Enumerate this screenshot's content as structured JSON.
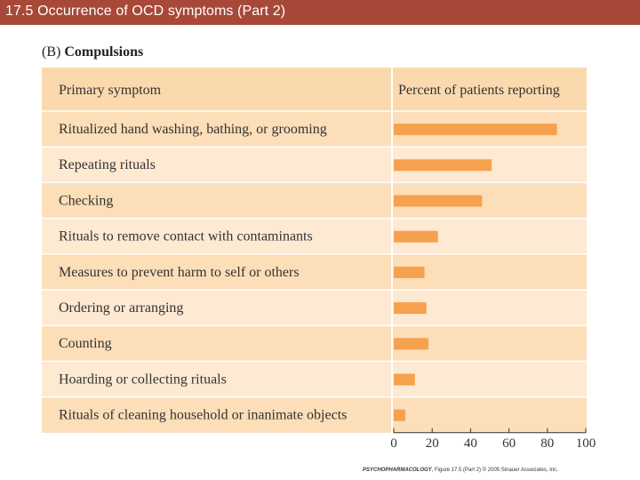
{
  "slide": {
    "title": "17.5 Occurrence of OCD symptoms (Part 2)"
  },
  "panel": {
    "letter": "(B)",
    "heading": "Compulsions"
  },
  "credit": {
    "book": "PSYCHOPHARMACOLOGY",
    "figure": ", Figure 17.5 (Part 2)",
    "rights": "© 2005 Sinauer Associates, Inc."
  },
  "colors": {
    "title_bar": "#a84838",
    "header_row": "#fbd9ae",
    "row_dark": "#fcdeb8",
    "row_light": "#fee9d2",
    "bar": "#f6a14e"
  },
  "chart_data": {
    "type": "bar",
    "orientation": "horizontal",
    "column_headers": [
      "Primary symptom",
      "Percent of patients reporting"
    ],
    "categories": [
      "Ritualized hand washing, bathing, or grooming",
      "Repeating rituals",
      "Checking",
      "Rituals to remove contact with contaminants",
      "Measures to prevent harm to self or others",
      "Ordering or arranging",
      "Counting",
      "Hoarding or collecting rituals",
      "Rituals of cleaning household or inanimate objects"
    ],
    "values": [
      85,
      51,
      46,
      23,
      16,
      17,
      18,
      11,
      6
    ],
    "xlim": [
      0,
      100
    ],
    "xticks": [
      0,
      20,
      40,
      60,
      80,
      100
    ],
    "grid": false
  }
}
